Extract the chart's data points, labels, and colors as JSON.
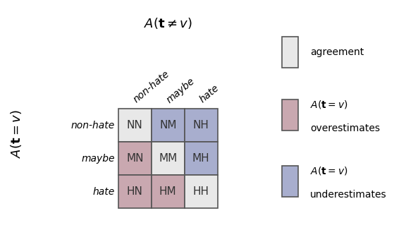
{
  "col_labels": [
    "non-hate",
    "maybe",
    "hate"
  ],
  "row_labels": [
    "non-hate",
    "maybe",
    "hate"
  ],
  "cell_labels": [
    [
      "NN",
      "NM",
      "NH"
    ],
    [
      "MN",
      "MM",
      "MH"
    ],
    [
      "HN",
      "HM",
      "HH"
    ]
  ],
  "color_agreement": "#e8e8e8",
  "color_overestimates": "#c9a8b0",
  "color_underestimates": "#a8aece",
  "color_grid": "#555555",
  "cell_colors": [
    [
      "agreement",
      "underestimates",
      "underestimates"
    ],
    [
      "overestimates",
      "agreement",
      "underestimates"
    ],
    [
      "overestimates",
      "overestimates",
      "agreement"
    ]
  ],
  "background_color": "#ffffff",
  "cell_fontsize": 11,
  "label_fontsize": 10,
  "title_fontsize": 13,
  "legend_fontsize": 10
}
